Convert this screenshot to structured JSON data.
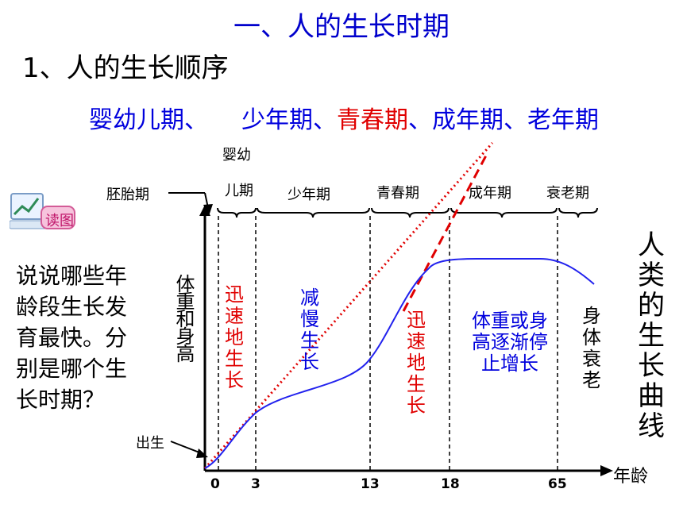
{
  "title": "一、人的生长时期",
  "subtitle": "1、人的生长顺序",
  "stages": {
    "s1": "婴幼儿期、",
    "s2": "少年期、",
    "s3": "青春期",
    "s4": "、成年期、老年期"
  },
  "badge_label": "读图",
  "question": "说说哪些年龄段生长发育最快。分别是哪个生长时期？",
  "curve_title": "人类的生长曲线",
  "diagram": {
    "y_label": "体重和身高",
    "x_label": "年龄",
    "birth_label": "出生",
    "periods": {
      "embryo": "胚胎期",
      "infant_line1": "婴幼",
      "infant_line2": "儿期",
      "child": "少年期",
      "puberty": "青春期",
      "adult": "成年期",
      "old": "衰老期"
    },
    "ticks": [
      "0",
      "3",
      "13",
      "18",
      "65"
    ],
    "notes": {
      "rapid1": "迅速地生长",
      "slow": "减慢生长",
      "rapid2": "迅速地生长",
      "stop": "体重或身高逐渐停止增长",
      "decline": "身体衰老"
    },
    "colors": {
      "curve": "#2222ee",
      "tangent": "#e00000",
      "axis": "#000000"
    }
  }
}
